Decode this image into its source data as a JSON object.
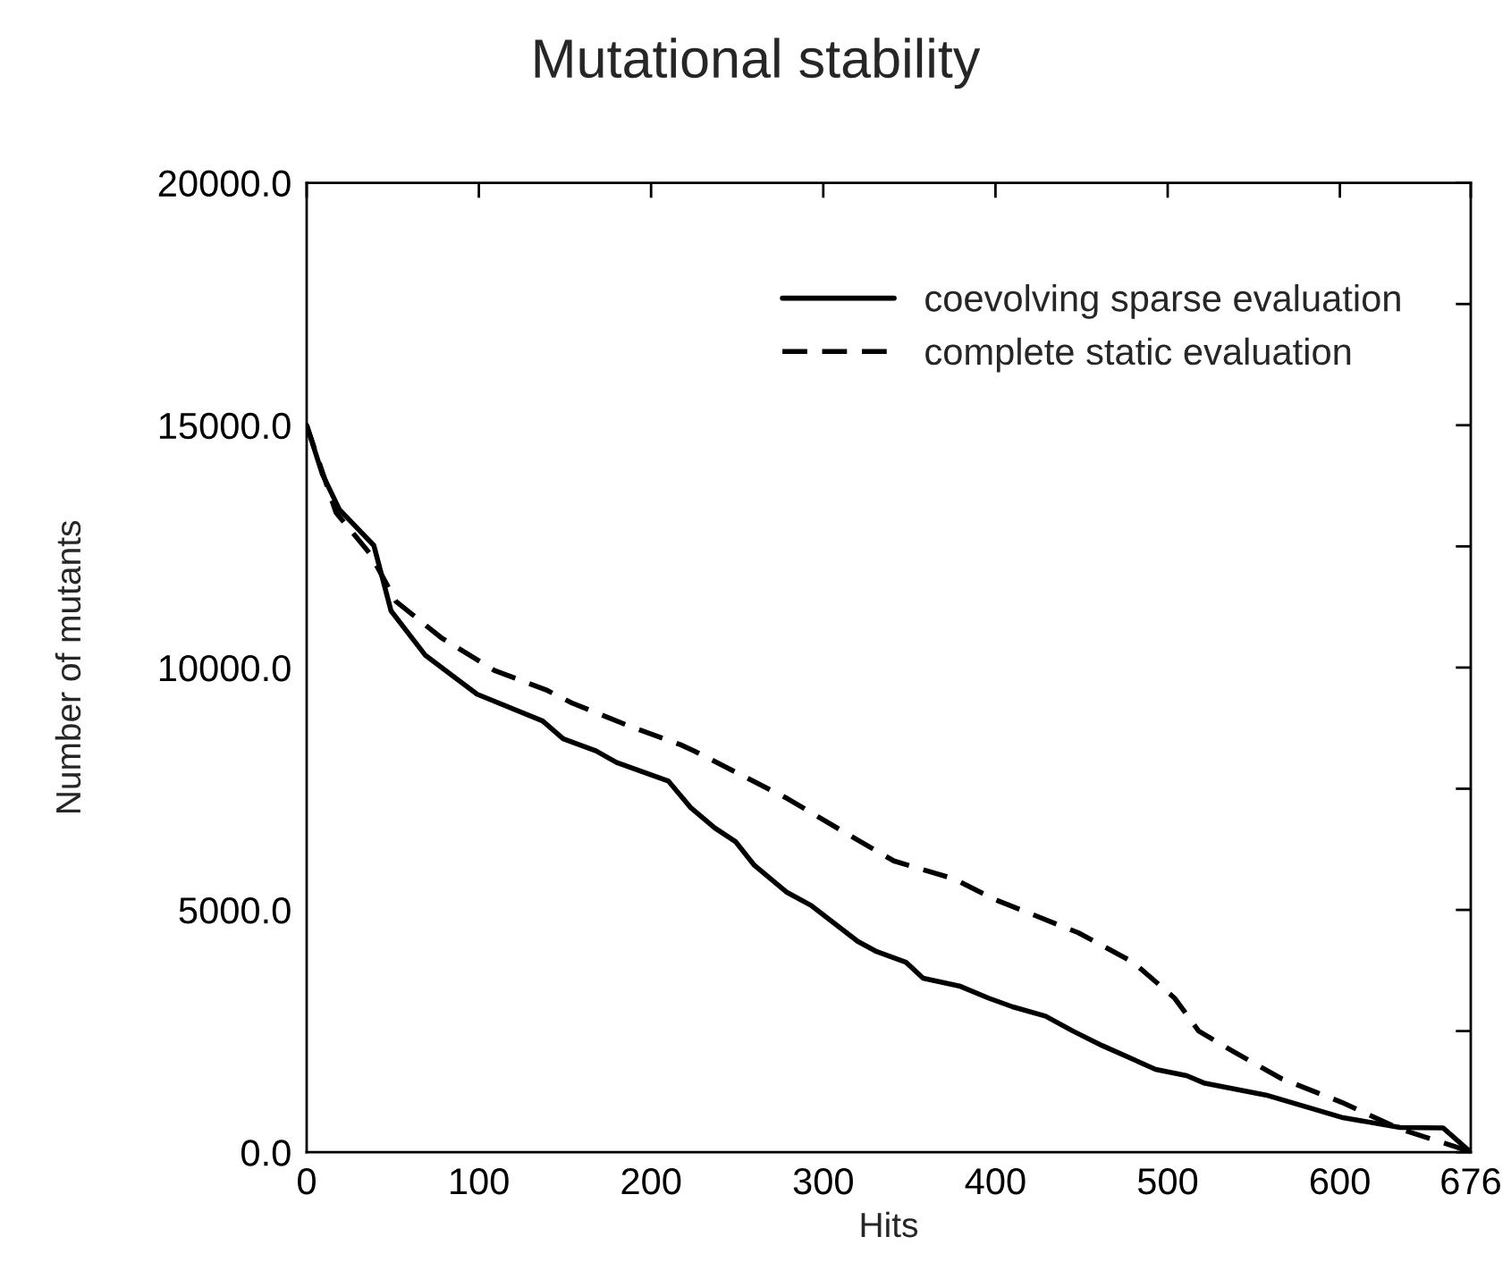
{
  "chart_data": {
    "type": "line",
    "title": "Mutational stability",
    "xlabel": "Hits",
    "ylabel": "Number of mutants",
    "xlim": [
      0,
      676
    ],
    "xticks": [
      0,
      100,
      200,
      300,
      400,
      500,
      600,
      676
    ],
    "ylim": [
      0,
      20000
    ],
    "yticks": [
      {
        "value": 0,
        "label": "0.0"
      },
      {
        "value": 2500,
        "label": null
      },
      {
        "value": 5000,
        "label": "5000.0"
      },
      {
        "value": 7500,
        "label": null
      },
      {
        "value": 10000,
        "label": "10000.0"
      },
      {
        "value": 12500,
        "label": null
      },
      {
        "value": 15000,
        "label": "15000.0"
      },
      {
        "value": 17500,
        "label": null
      },
      {
        "value": 20000,
        "label": "20000.0"
      }
    ],
    "grid": false,
    "legend": "top right",
    "marker": "none",
    "series": [
      {
        "name": "coevolving sparse evaluation",
        "color": "#000000",
        "line_style": "solid",
        "x": [
          0,
          9,
          19,
          39,
          49,
          69,
          99,
          137,
          149,
          168,
          180,
          210,
          223,
          237,
          249,
          260,
          279,
          293,
          320,
          331,
          348,
          358,
          379,
          396,
          410,
          429,
          445,
          462,
          493,
          511,
          521,
          557,
          583,
          601,
          635,
          660,
          676
        ],
        "values": [
          15000,
          14000,
          13260,
          12520,
          11170,
          10250,
          9450,
          8900,
          8530,
          8280,
          8040,
          7660,
          7110,
          6690,
          6410,
          5920,
          5360,
          5090,
          4350,
          4140,
          3920,
          3590,
          3430,
          3180,
          3000,
          2810,
          2500,
          2200,
          1710,
          1580,
          1430,
          1180,
          910,
          720,
          510,
          500,
          0
        ]
      },
      {
        "name": "complete static evaluation",
        "color": "#000000",
        "line_style": "dashed",
        "x": [
          0,
          17,
          37,
          52,
          78,
          109,
          139,
          154,
          189,
          217,
          225,
          279,
          320,
          341,
          376,
          400,
          448,
          480,
          504,
          518,
          538,
          566,
          601,
          635,
          670,
          676
        ],
        "values": [
          15000,
          13200,
          12340,
          11360,
          10620,
          9940,
          9540,
          9270,
          8770,
          8410,
          8280,
          7300,
          6440,
          6010,
          5640,
          5210,
          4530,
          3920,
          3180,
          2500,
          2080,
          1520,
          1030,
          480,
          80,
          0
        ]
      }
    ]
  }
}
